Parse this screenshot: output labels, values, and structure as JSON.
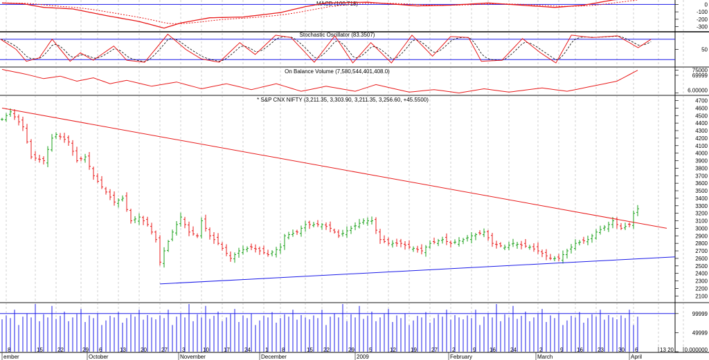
{
  "chart_data": {
    "type": "ohlc",
    "panels": {
      "macd": {
        "title": "MACD (100.718)",
        "ticks": [
          0,
          -100,
          -200,
          -300
        ],
        "ylim": [
          60,
          -360
        ],
        "points": [
          [
            0,
            20
          ],
          [
            5,
            10
          ],
          [
            10,
            -40
          ],
          [
            17,
            -60
          ],
          [
            25,
            -150
          ],
          [
            33,
            -230
          ],
          [
            39,
            -320
          ],
          [
            43,
            -250
          ],
          [
            50,
            -180
          ],
          [
            58,
            -170
          ],
          [
            67,
            -110
          ],
          [
            73,
            -30
          ],
          [
            78,
            20
          ],
          [
            88,
            30
          ],
          [
            93,
            10
          ],
          [
            100,
            -20
          ],
          [
            108,
            -10
          ],
          [
            117,
            20
          ],
          [
            125,
            -10
          ],
          [
            133,
            -40
          ],
          [
            140,
            -10
          ],
          [
            147,
            60
          ],
          [
            153,
            100
          ]
        ]
      },
      "stochastic": {
        "title": "Stochastic Oscillator (83.3507)",
        "ticks": [
          50
        ],
        "levels": [
          80,
          20
        ],
        "ylim": [
          100,
          0
        ],
        "points": [
          [
            0,
            80
          ],
          [
            6,
            50
          ],
          [
            10,
            15
          ],
          [
            15,
            25
          ],
          [
            20,
            80
          ],
          [
            27,
            15
          ],
          [
            31,
            40
          ],
          [
            36,
            18
          ],
          [
            44,
            60
          ],
          [
            49,
            18
          ],
          [
            56,
            12
          ],
          [
            65,
            95
          ],
          [
            72,
            50
          ],
          [
            78,
            22
          ],
          [
            85,
            12
          ],
          [
            93,
            70
          ],
          [
            99,
            35
          ],
          [
            107,
            92
          ],
          [
            113,
            85
          ],
          [
            122,
            12
          ],
          [
            130,
            90
          ],
          [
            137,
            10
          ],
          [
            144,
            70
          ],
          [
            152,
            10
          ],
          [
            160,
            92
          ],
          [
            168,
            30
          ],
          [
            175,
            88
          ],
          [
            182,
            85
          ],
          [
            187,
            15
          ],
          [
            195,
            18
          ],
          [
            203,
            82
          ],
          [
            210,
            40
          ],
          [
            216,
            10
          ],
          [
            222,
            92
          ],
          [
            230,
            85
          ],
          [
            240,
            90
          ],
          [
            248,
            55
          ],
          [
            253,
            80
          ]
        ]
      },
      "obv": {
        "title": "On Balance Volume (7,580,544,401,408.0)",
        "ticks": [
          "75000",
          "69999",
          "6.00000"
        ],
        "ylim": [
          78,
          46
        ],
        "points": [
          [
            0,
            76
          ],
          [
            6,
            70
          ],
          [
            10,
            65
          ],
          [
            14,
            68
          ],
          [
            18,
            62
          ],
          [
            22,
            66
          ],
          [
            26,
            59
          ],
          [
            30,
            63
          ],
          [
            36,
            56
          ],
          [
            42,
            61
          ],
          [
            48,
            53
          ],
          [
            54,
            59
          ],
          [
            60,
            52
          ],
          [
            66,
            59
          ],
          [
            72,
            50
          ],
          [
            78,
            56
          ],
          [
            85,
            50
          ],
          [
            90,
            58
          ],
          [
            98,
            49
          ],
          [
            104,
            52
          ],
          [
            110,
            48
          ],
          [
            116,
            53
          ],
          [
            122,
            49
          ],
          [
            130,
            54
          ],
          [
            136,
            50
          ],
          [
            142,
            56
          ],
          [
            148,
            62
          ],
          [
            153,
            75
          ]
        ]
      },
      "price": {
        "title": "* S&P CNX NIFTY (3,211.35, 3,303.90, 3,211.35, 3,256.60, +45.5500)",
        "ylim": [
          4760,
          2020
        ],
        "ticks": [
          4700,
          4600,
          4500,
          4400,
          4300,
          4200,
          4100,
          4000,
          3900,
          3800,
          3700,
          3600,
          3500,
          3400,
          3300,
          3200,
          3100,
          3000,
          2900,
          2800,
          2700,
          2600,
          2500,
          2400,
          2300,
          2200,
          2100
        ],
        "closes_keypoints": [
          [
            0,
            4450
          ],
          [
            2,
            4550
          ],
          [
            5,
            4350
          ],
          [
            7,
            3950
          ],
          [
            10,
            3900
          ],
          [
            12,
            4200
          ],
          [
            13,
            4250
          ],
          [
            16,
            4150
          ],
          [
            18,
            3900
          ],
          [
            20,
            3950
          ],
          [
            22,
            3700
          ],
          [
            24,
            3550
          ],
          [
            27,
            3350
          ],
          [
            29,
            3400
          ],
          [
            31,
            3100
          ],
          [
            33,
            3150
          ],
          [
            35,
            3050
          ],
          [
            37,
            2850
          ],
          [
            38,
            2550
          ],
          [
            39,
            2700
          ],
          [
            41,
            2950
          ],
          [
            43,
            3150
          ],
          [
            45,
            2950
          ],
          [
            47,
            2900
          ],
          [
            48,
            3100
          ],
          [
            50,
            2900
          ],
          [
            52,
            2800
          ],
          [
            55,
            2600
          ],
          [
            57,
            2700
          ],
          [
            60,
            2750
          ],
          [
            62,
            2700
          ],
          [
            64,
            2650
          ],
          [
            67,
            2750
          ],
          [
            68,
            2900
          ],
          [
            71,
            2950
          ],
          [
            73,
            3050
          ],
          [
            77,
            3050
          ],
          [
            79,
            3000
          ],
          [
            81,
            2900
          ],
          [
            84,
            3000
          ],
          [
            87,
            3100
          ],
          [
            89,
            3100
          ],
          [
            91,
            2850
          ],
          [
            93,
            2800
          ],
          [
            96,
            2800
          ],
          [
            98,
            2750
          ],
          [
            101,
            2700
          ],
          [
            103,
            2800
          ],
          [
            106,
            2850
          ],
          [
            108,
            2800
          ],
          [
            111,
            2850
          ],
          [
            113,
            2900
          ],
          [
            116,
            2950
          ],
          [
            118,
            2800
          ],
          [
            121,
            2750
          ],
          [
            123,
            2800
          ],
          [
            127,
            2750
          ],
          [
            129,
            2700
          ],
          [
            132,
            2600
          ],
          [
            134,
            2600
          ],
          [
            136,
            2700
          ],
          [
            138,
            2800
          ],
          [
            141,
            2850
          ],
          [
            143,
            2950
          ],
          [
            146,
            3050
          ],
          [
            147,
            3100
          ],
          [
            149,
            3000
          ],
          [
            151,
            3050
          ],
          [
            152,
            3200
          ],
          [
            153,
            3260
          ]
        ],
        "trendlines": [
          {
            "color": "#e81818",
            "from": [
              0,
              4600
            ],
            "to": [
              160,
              3000
            ]
          },
          {
            "color": "#1818e8",
            "from": [
              38,
              2260
            ],
            "to": [
              162,
              2620
            ]
          }
        ]
      },
      "volume": {
        "ticks": [
          "99999",
          "49999",
          "0.000000"
        ],
        "ylim": [
          125000,
          0
        ],
        "level": 99999,
        "values": [
          85000,
          95000,
          88000,
          110000,
          70000,
          92000,
          100000,
          90000,
          125000,
          80000,
          98000,
          90000,
          120000,
          86000,
          94000,
          105000,
          80000,
          90000,
          99000,
          112000,
          78000,
          95000,
          88000,
          100000,
          70000,
          82000,
          94000,
          90000,
          104000,
          76000,
          88000,
          98000,
          92000,
          110000,
          84000,
          96000,
          90000
        ]
      }
    },
    "x_labels": [
      [
        "8",
        1
      ],
      [
        "15",
        8
      ],
      [
        "22",
        13
      ],
      [
        "29",
        19
      ],
      [
        "6",
        23
      ],
      [
        "13",
        28
      ],
      [
        "20",
        33
      ],
      [
        "27",
        38
      ],
      [
        "3",
        43
      ],
      [
        "10",
        48
      ],
      [
        "17",
        53
      ],
      [
        "24",
        58
      ],
      [
        "1",
        63
      ],
      [
        "8",
        67
      ],
      [
        "15",
        73
      ],
      [
        "22",
        77
      ],
      [
        "29",
        83
      ],
      [
        "5",
        88
      ],
      [
        "12",
        93
      ],
      [
        "19",
        98
      ],
      [
        "27",
        103
      ],
      [
        "2",
        108
      ],
      [
        "9",
        113
      ],
      [
        "16",
        117
      ],
      [
        "24",
        122
      ],
      [
        "2",
        129
      ],
      [
        "9",
        134
      ],
      [
        "16",
        138
      ],
      [
        "23",
        143
      ],
      [
        "30",
        148
      ],
      [
        "6",
        152
      ],
      [
        "13",
        158
      ],
      [
        "20",
        164
      ]
    ],
    "months": [
      [
        "ember",
        0
      ],
      [
        "October",
        20.5
      ],
      [
        "November",
        42.5
      ],
      [
        "December",
        62
      ],
      [
        "2009",
        85
      ],
      [
        "February",
        107.5
      ],
      [
        "March",
        128.5
      ],
      [
        "April",
        151
      ]
    ],
    "colors": {
      "up": "#18a018",
      "down": "#e81818",
      "line": "#e81818",
      "level": "#1818e8"
    }
  }
}
